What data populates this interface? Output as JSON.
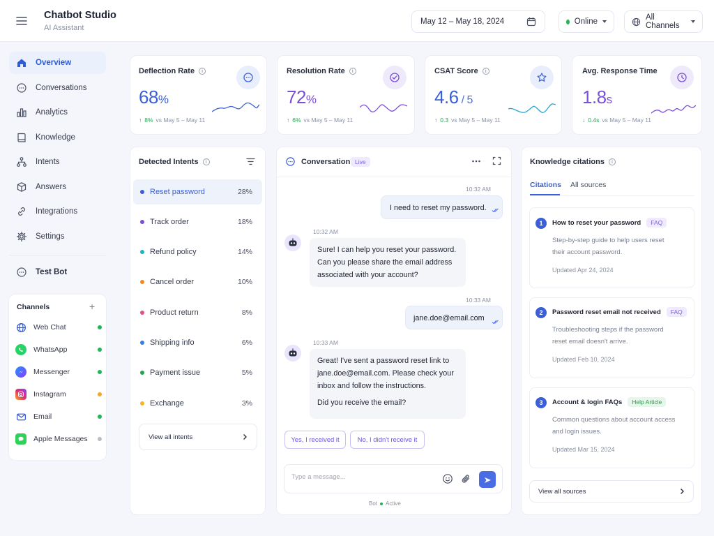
{
  "app": {
    "title": "Chatbot Studio",
    "subtitle": "AI Assistant"
  },
  "header": {
    "date_range": "May 12 – May 18, 2024",
    "status": "Online",
    "channel_filter": "All Channels"
  },
  "sidebar": {
    "items": [
      {
        "label": "Overview",
        "icon": "home-icon"
      },
      {
        "label": "Conversations",
        "icon": "chat-icon"
      },
      {
        "label": "Analytics",
        "icon": "bar-chart-icon"
      },
      {
        "label": "Knowledge",
        "icon": "book-icon"
      },
      {
        "label": "Intents",
        "icon": "flow-icon"
      },
      {
        "label": "Answers",
        "icon": "box-icon"
      },
      {
        "label": "Integrations",
        "icon": "link-icon"
      },
      {
        "label": "Settings",
        "icon": "gear-icon"
      }
    ],
    "test_bot": "Test Bot",
    "channels_title": "Channels",
    "channels": [
      {
        "label": "Web Chat",
        "status_color": "#22b455"
      },
      {
        "label": "WhatsApp",
        "status_color": "#22b455"
      },
      {
        "label": "Messenger",
        "status_color": "#22b455"
      },
      {
        "label": "Instagram",
        "status_color": "#f5a623"
      },
      {
        "label": "Email",
        "status_color": "#22b455"
      },
      {
        "label": "Apple Messages",
        "status_color": "#b9bdc8"
      }
    ]
  },
  "kpis": [
    {
      "title": "Deflection Rate",
      "value": "68",
      "unit": "%",
      "delta": "8%",
      "delta_dir": "up",
      "period": "vs May 5 – May 11",
      "color": "#3a5fd6"
    },
    {
      "title": "Resolution Rate",
      "value": "72",
      "unit": "%",
      "delta": "6%",
      "delta_dir": "up",
      "period": "vs May 5 – May 11",
      "color": "#7b4fd8"
    },
    {
      "title": "CSAT Score",
      "value": "4.6",
      "unit": " / 5",
      "delta": "0.3",
      "delta_dir": "up",
      "period": "vs May 5 – May 11",
      "color": "#3a5fd6"
    },
    {
      "title": "Avg. Response Time",
      "value": "1.8",
      "unit": "s",
      "delta": "0.4s",
      "delta_dir": "down",
      "period": "vs May 5 – May 11",
      "color": "#7b4fd8"
    }
  ],
  "intents": {
    "title": "Detected Intents",
    "rows": [
      {
        "label": "Reset password",
        "pct": "28%",
        "color": "#3a5fd6"
      },
      {
        "label": "Track order",
        "pct": "18%",
        "color": "#7b4fd8"
      },
      {
        "label": "Refund policy",
        "pct": "14%",
        "color": "#1fb5c4"
      },
      {
        "label": "Cancel order",
        "pct": "10%",
        "color": "#f08a24"
      },
      {
        "label": "Product return",
        "pct": "8%",
        "color": "#e0508a"
      },
      {
        "label": "Shipping info",
        "pct": "6%",
        "color": "#3a7de0"
      },
      {
        "label": "Payment issue",
        "pct": "5%",
        "color": "#22a452"
      },
      {
        "label": "Exchange",
        "pct": "3%",
        "color": "#f2b824"
      }
    ],
    "view_all": "View all intents"
  },
  "conversation": {
    "title": "Conversation",
    "badge": "Live",
    "messages": [
      {
        "from": "user",
        "time": "10:32 AM",
        "text": "I need to reset my password."
      },
      {
        "from": "bot",
        "time": "10:32 AM",
        "text": "Sure! I can help you reset your password. Can you please share the email address associated with your account?"
      },
      {
        "from": "user",
        "time": "10:33 AM",
        "text": "jane.doe@email.com"
      },
      {
        "from": "bot",
        "time": "10:33 AM",
        "text": "Great! I've sent a password reset link to jane.doe@email.com. Please check your inbox and follow the instructions.",
        "text2": "Did you receive the email?"
      }
    ],
    "quick_replies": [
      "Yes, I received it",
      "No, I didn't receive it"
    ],
    "input_placeholder": "Type a message...",
    "footer_bot": "Bot",
    "footer_status": "Active"
  },
  "citations": {
    "title": "Knowledge citations",
    "tabs": [
      "Citations",
      "All sources"
    ],
    "items": [
      {
        "num": "1",
        "title": "How to reset your password",
        "tag": "FAQ",
        "desc": "Step-by-step guide to help users reset their account password.",
        "updated": "Updated Apr 24, 2024"
      },
      {
        "num": "2",
        "title": "Password reset email not received",
        "tag": "FAQ",
        "desc": "Troubleshooting steps if the password reset email doesn't arrive.",
        "updated": "Updated Feb 10, 2024"
      },
      {
        "num": "3",
        "title": "Account & login FAQs",
        "tag": "Help Article",
        "desc": "Common questions about account access and login issues.",
        "updated": "Updated Mar 15, 2024"
      }
    ],
    "view_all": "View all sources"
  }
}
